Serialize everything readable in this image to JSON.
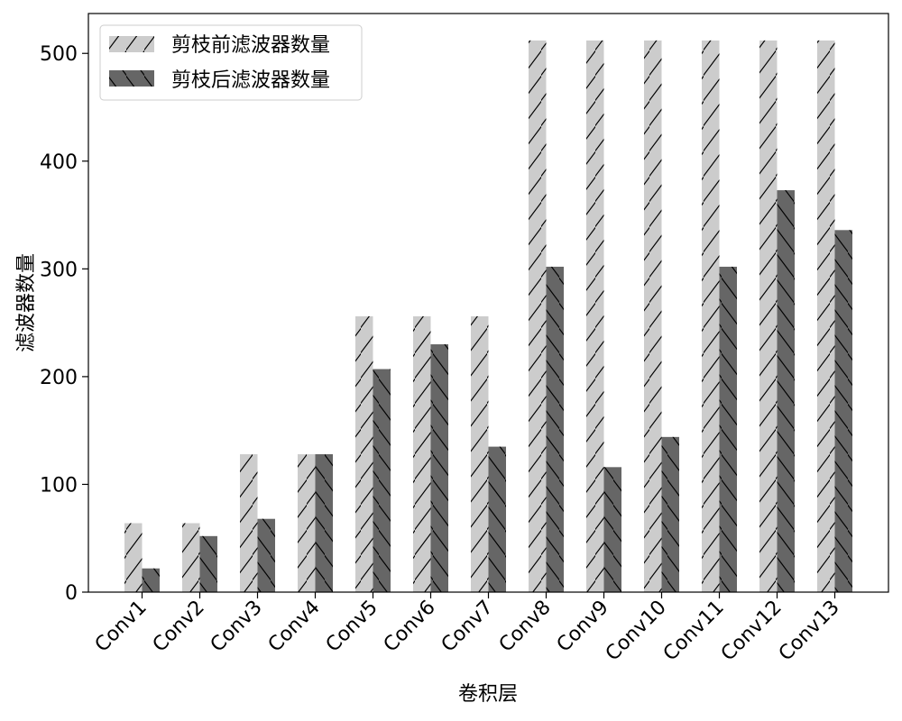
{
  "chart_data": {
    "type": "bar",
    "title": "",
    "xlabel": "卷积层",
    "ylabel": "滤波器数量",
    "categories": [
      "Conv1",
      "Conv2",
      "Conv3",
      "Conv4",
      "Conv5",
      "Conv6",
      "Conv7",
      "Conv8",
      "Conv9",
      "Conv10",
      "Conv11",
      "Conv12",
      "Conv13"
    ],
    "series": [
      {
        "name": "剪枝前滤波器数量",
        "color": "#cccccc",
        "hatch": "/",
        "values": [
          64,
          64,
          128,
          128,
          256,
          256,
          256,
          512,
          512,
          512,
          512,
          512,
          512
        ]
      },
      {
        "name": "剪枝后滤波器数量",
        "color": "#666666",
        "hatch": "\\",
        "values": [
          22,
          52,
          68,
          128,
          207,
          230,
          135,
          302,
          116,
          144,
          302,
          373,
          336
        ]
      }
    ],
    "ylim": [
      0,
      537
    ],
    "yticks": [
      0,
      100,
      200,
      300,
      400,
      500
    ],
    "grid": false,
    "legend": "top-left"
  }
}
